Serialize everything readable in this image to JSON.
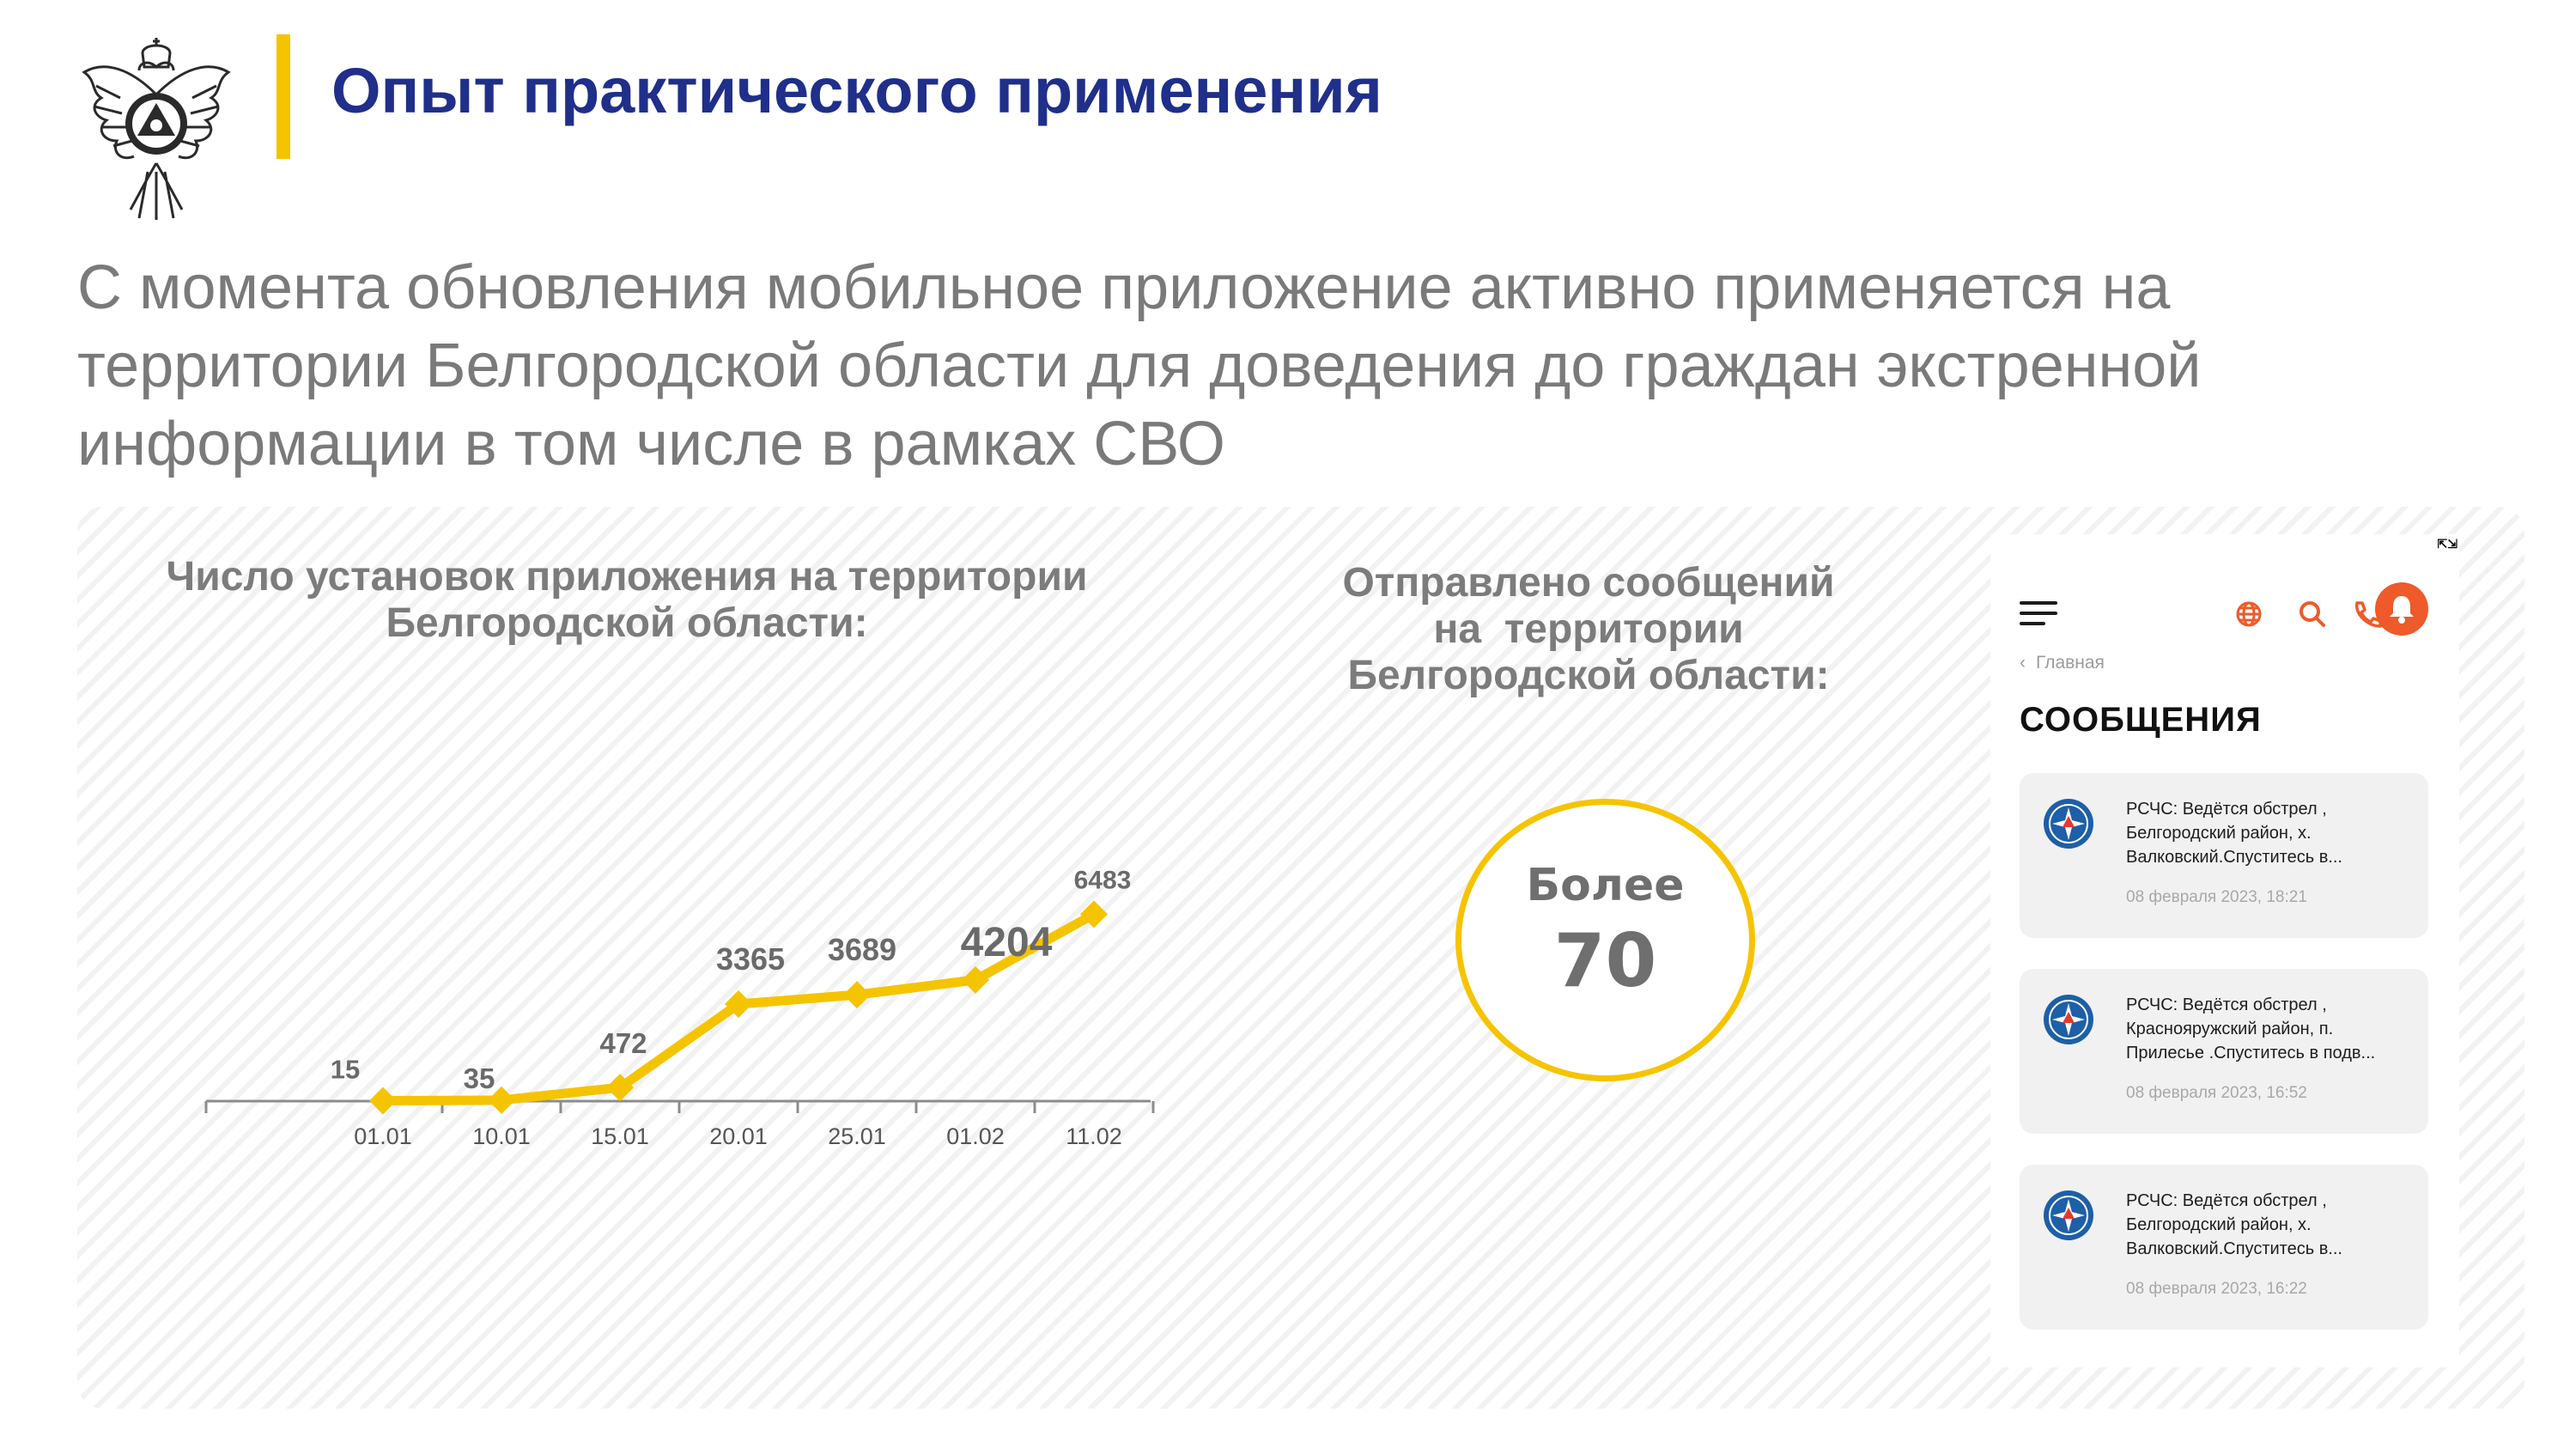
{
  "header": {
    "title": "Опыт практического применения",
    "title_color": "#1f2f8a",
    "accent_bar_color": "#f5c400"
  },
  "lead_text": "С момента обновления мобильное приложение активно применяется на территории Белгородской области для доведения до граждан экстренной информации в том числе в рамках СВО",
  "install_chart": {
    "title_lines": [
      "Число установок приложения на территории",
      "Белгородской области:"
    ]
  },
  "chart_data": {
    "type": "line",
    "title": "Число установок приложения на территории Белгородской области:",
    "categories": [
      "01.01",
      "10.01",
      "15.01",
      "20.01",
      "25.01",
      "01.02",
      "11.02"
    ],
    "series": [
      {
        "values": [
          15,
          35,
          472,
          3365,
          3689,
          4204,
          6483
        ],
        "color": "#f5c400"
      }
    ],
    "data_labels": [
      "15",
      "35",
      "472",
      "3365",
      "3689",
      "4204",
      "6483"
    ],
    "ylim": [
      0,
      7000
    ],
    "marker": "diamond",
    "grid": false,
    "legend": "none"
  },
  "messages_stat": {
    "title_lines": [
      "Отправлено сообщений",
      "на  территории",
      "Белгородской области:"
    ],
    "prefix": "Более",
    "value": "70",
    "circle_color": "#f5c400"
  },
  "phone": {
    "breadcrumb": "Главная",
    "section_title": "СООБЩЕНИЯ",
    "accent_color": "#ee5a2a",
    "icons": [
      "menu-icon",
      "globe-icon",
      "search-icon",
      "phone-icon",
      "bell-icon"
    ],
    "messages": [
      {
        "text": "РСЧС: Ведётся обстрел , Белгородский район, х. Валковский.Спуститесь в...",
        "date": "08 февраля 2023, 18:21"
      },
      {
        "text": "РСЧС: Ведётся обстрел , Краснояружский район, п. Прилесье .Спуститесь в подв...",
        "date": "08 февраля 2023, 16:52"
      },
      {
        "text": "РСЧС: Ведётся обстрел , Белгородский район, х. Валковский.Спуститесь в...",
        "date": "08 февраля 2023, 16:22"
      }
    ]
  }
}
